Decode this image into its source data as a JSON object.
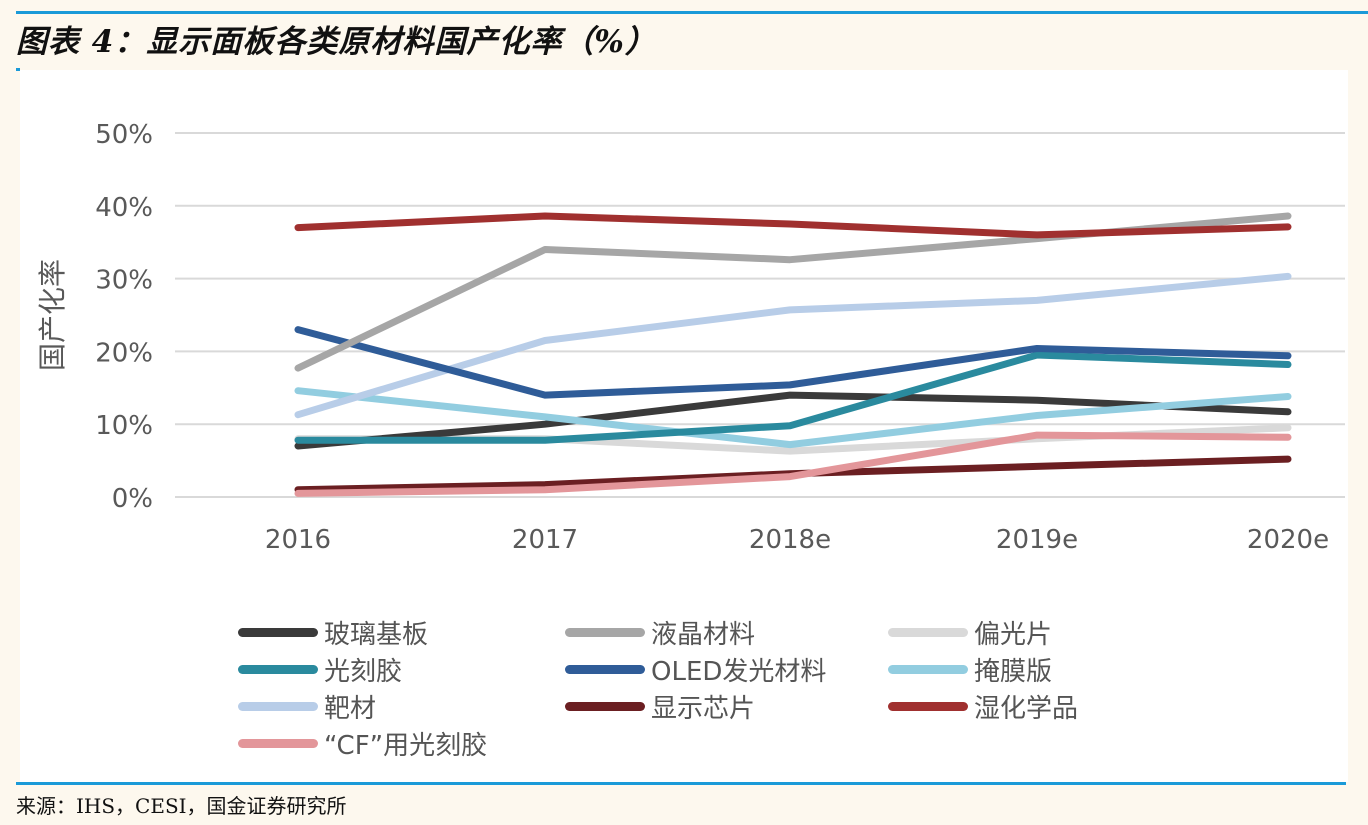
{
  "header": {
    "title": "图表 4：显示面板各类原材料国产化率（%）"
  },
  "footer": {
    "source": "来源：IHS，CESI，国金证券研究所"
  },
  "chart_data": {
    "type": "line",
    "title": "显示面板各类原材料国产化率（%）",
    "xlabel": "",
    "ylabel": "国产化率",
    "categories": [
      "2016",
      "2017",
      "2018e",
      "2019e",
      "2020e"
    ],
    "ylim": [
      0,
      50
    ],
    "yticks": [
      "0%",
      "10%",
      "20%",
      "30%",
      "40%",
      "50%"
    ],
    "ytick_values": [
      0,
      10,
      20,
      30,
      40,
      50
    ],
    "grid": true,
    "legend_position": "bottom",
    "series": [
      {
        "name": "玻璃基板",
        "color": "#3a3a3a",
        "values": [
          7.0,
          10.0,
          14.0,
          13.3,
          11.7
        ]
      },
      {
        "name": "液晶材料",
        "color": "#a6a6a6",
        "values": [
          17.7,
          34.0,
          32.6,
          35.5,
          38.6
        ]
      },
      {
        "name": "偏光片",
        "color": "#d9d9d9",
        "values": [
          8.0,
          8.0,
          6.3,
          8.0,
          9.5
        ]
      },
      {
        "name": "光刻胶",
        "color": "#2a8a9e",
        "values": [
          7.8,
          7.8,
          9.8,
          19.5,
          18.2
        ]
      },
      {
        "name": "OLED发光材料",
        "color": "#2f5c98",
        "values": [
          23.0,
          14.0,
          15.4,
          20.4,
          19.4
        ]
      },
      {
        "name": "掩膜版",
        "color": "#92cde0",
        "values": [
          14.6,
          11.0,
          7.2,
          11.2,
          13.8
        ]
      },
      {
        "name": "靶材",
        "color": "#b8cde8",
        "values": [
          11.3,
          21.5,
          25.7,
          27.0,
          30.3
        ]
      },
      {
        "name": "显示芯片",
        "color": "#6b1f22",
        "values": [
          1.0,
          1.7,
          3.2,
          4.2,
          5.2
        ]
      },
      {
        "name": "湿化学品",
        "color": "#a0302f",
        "values": [
          37.0,
          38.6,
          37.5,
          36.0,
          37.1
        ]
      },
      {
        "name": "“CF”用光刻胶",
        "color": "#e3969a",
        "values": [
          0.5,
          1.0,
          2.8,
          8.5,
          8.2
        ]
      }
    ]
  },
  "colors": {
    "rule": "#1a9ad8",
    "page_background": "#fdf8ee",
    "panel_background": "#ffffff",
    "gridline": "#d9d9d9",
    "axis_text": "#595959"
  }
}
